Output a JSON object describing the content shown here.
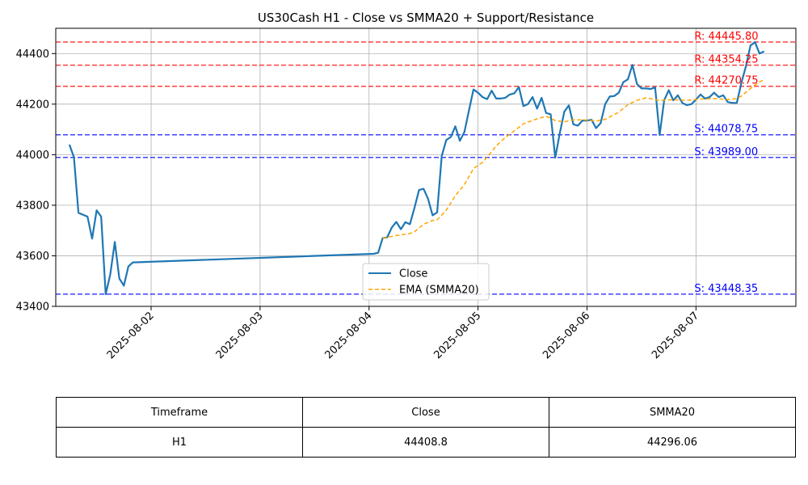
{
  "chart_data": {
    "type": "line",
    "title": "US30Cash H1 - Close vs SMMA20 + Support/Resistance",
    "xlabel": "",
    "ylabel": "",
    "x_ticks": [
      "2025-08-02",
      "2025-08-03",
      "2025-08-04",
      "2025-08-05",
      "2025-08-06",
      "2025-08-07"
    ],
    "y_ticks": [
      43400,
      43600,
      43800,
      44000,
      44200,
      44400
    ],
    "xlim": [
      "2025-08-01 03:00",
      "2025-08-07 22:00"
    ],
    "ylim": [
      43400,
      44500
    ],
    "grid": true,
    "legend_position": "lower-center",
    "series": [
      {
        "name": "Close",
        "color": "#1f77b4",
        "style": "solid",
        "points": [
          [
            "2025-08-01 06:00",
            44040
          ],
          [
            "2025-08-01 07:00",
            43990
          ],
          [
            "2025-08-01 08:00",
            43770
          ],
          [
            "2025-08-01 10:00",
            43755
          ],
          [
            "2025-08-01 11:00",
            43668
          ],
          [
            "2025-08-01 12:00",
            43780
          ],
          [
            "2025-08-01 13:00",
            43755
          ],
          [
            "2025-08-01 14:00",
            43448
          ],
          [
            "2025-08-01 15:00",
            43525
          ],
          [
            "2025-08-01 16:00",
            43655
          ],
          [
            "2025-08-01 17:00",
            43510
          ],
          [
            "2025-08-01 18:00",
            43482
          ],
          [
            "2025-08-01 19:00",
            43558
          ],
          [
            "2025-08-01 20:00",
            43574
          ],
          [
            "2025-08-04 01:00",
            43608
          ],
          [
            "2025-08-04 02:00",
            43612
          ],
          [
            "2025-08-04 03:00",
            43670
          ],
          [
            "2025-08-04 04:00",
            43673
          ],
          [
            "2025-08-04 05:00",
            43712
          ],
          [
            "2025-08-04 06:00",
            43734
          ],
          [
            "2025-08-04 07:00",
            43705
          ],
          [
            "2025-08-04 08:00",
            43733
          ],
          [
            "2025-08-04 09:00",
            43725
          ],
          [
            "2025-08-04 10:00",
            43790
          ],
          [
            "2025-08-04 11:00",
            43860
          ],
          [
            "2025-08-04 12:00",
            43865
          ],
          [
            "2025-08-04 13:00",
            43825
          ],
          [
            "2025-08-04 14:00",
            43760
          ],
          [
            "2025-08-04 15:00",
            43772
          ],
          [
            "2025-08-04 16:00",
            43995
          ],
          [
            "2025-08-04 17:00",
            44058
          ],
          [
            "2025-08-04 18:00",
            44070
          ],
          [
            "2025-08-04 19:00",
            44112
          ],
          [
            "2025-08-04 20:00",
            44055
          ],
          [
            "2025-08-04 21:00",
            44090
          ],
          [
            "2025-08-04 22:00",
            44175
          ],
          [
            "2025-08-04 23:00",
            44258
          ],
          [
            "2025-08-05 00:00",
            44245
          ],
          [
            "2025-08-05 01:00",
            44228
          ],
          [
            "2025-08-05 02:00",
            44220
          ],
          [
            "2025-08-05 03:00",
            44253
          ],
          [
            "2025-08-05 04:00",
            44222
          ],
          [
            "2025-08-05 05:00",
            44222
          ],
          [
            "2025-08-05 06:00",
            44225
          ],
          [
            "2025-08-05 07:00",
            44238
          ],
          [
            "2025-08-05 08:00",
            44243
          ],
          [
            "2025-08-05 09:00",
            44268
          ],
          [
            "2025-08-05 10:00",
            44192
          ],
          [
            "2025-08-05 11:00",
            44200
          ],
          [
            "2025-08-05 12:00",
            44228
          ],
          [
            "2025-08-05 13:00",
            44182
          ],
          [
            "2025-08-05 14:00",
            44225
          ],
          [
            "2025-08-05 15:00",
            44165
          ],
          [
            "2025-08-05 16:00",
            44160
          ],
          [
            "2025-08-05 17:00",
            43988
          ],
          [
            "2025-08-05 18:00",
            44085
          ],
          [
            "2025-08-05 19:00",
            44170
          ],
          [
            "2025-08-05 20:00",
            44195
          ],
          [
            "2025-08-05 21:00",
            44120
          ],
          [
            "2025-08-05 22:00",
            44115
          ],
          [
            "2025-08-05 23:00",
            44135
          ],
          [
            "2025-08-06 00:00",
            44135
          ],
          [
            "2025-08-06 01:00",
            44138
          ],
          [
            "2025-08-06 02:00",
            44105
          ],
          [
            "2025-08-06 03:00",
            44125
          ],
          [
            "2025-08-06 04:00",
            44200
          ],
          [
            "2025-08-06 05:00",
            44230
          ],
          [
            "2025-08-06 06:00",
            44232
          ],
          [
            "2025-08-06 07:00",
            44245
          ],
          [
            "2025-08-06 08:00",
            44287
          ],
          [
            "2025-08-06 09:00",
            44298
          ],
          [
            "2025-08-06 10:00",
            44355
          ],
          [
            "2025-08-06 11:00",
            44280
          ],
          [
            "2025-08-06 12:00",
            44262
          ],
          [
            "2025-08-06 13:00",
            44262
          ],
          [
            "2025-08-06 14:00",
            44260
          ],
          [
            "2025-08-06 15:00",
            44266
          ],
          [
            "2025-08-06 16:00",
            44078
          ],
          [
            "2025-08-06 17:00",
            44215
          ],
          [
            "2025-08-06 18:00",
            44255
          ],
          [
            "2025-08-06 19:00",
            44215
          ],
          [
            "2025-08-06 20:00",
            44235
          ],
          [
            "2025-08-06 21:00",
            44205
          ],
          [
            "2025-08-06 22:00",
            44196
          ],
          [
            "2025-08-06 23:00",
            44200
          ],
          [
            "2025-08-07 00:00",
            44218
          ],
          [
            "2025-08-07 01:00",
            44238
          ],
          [
            "2025-08-07 02:00",
            44222
          ],
          [
            "2025-08-07 03:00",
            44228
          ],
          [
            "2025-08-07 04:00",
            44245
          ],
          [
            "2025-08-07 05:00",
            44228
          ],
          [
            "2025-08-07 06:00",
            44235
          ],
          [
            "2025-08-07 07:00",
            44208
          ],
          [
            "2025-08-07 08:00",
            44205
          ],
          [
            "2025-08-07 09:00",
            44205
          ],
          [
            "2025-08-07 10:00",
            44285
          ],
          [
            "2025-08-07 11:00",
            44350
          ],
          [
            "2025-08-07 12:00",
            44432
          ],
          [
            "2025-08-07 13:00",
            44445
          ],
          [
            "2025-08-07 14:00",
            44400
          ],
          [
            "2025-08-07 15:00",
            44408.8
          ]
        ]
      },
      {
        "name": "EMA (SMMA20)",
        "color": "#ffa500",
        "style": "dashed",
        "points": [
          [
            "2025-08-04 03:00",
            43670
          ],
          [
            "2025-08-04 06:00",
            43680
          ],
          [
            "2025-08-04 09:00",
            43688
          ],
          [
            "2025-08-04 10:00",
            43695
          ],
          [
            "2025-08-04 12:00",
            43725
          ],
          [
            "2025-08-04 14:00",
            43740
          ],
          [
            "2025-08-04 15:00",
            43742
          ],
          [
            "2025-08-04 17:00",
            43780
          ],
          [
            "2025-08-04 19:00",
            43838
          ],
          [
            "2025-08-04 21:00",
            43882
          ],
          [
            "2025-08-04 23:00",
            43945
          ],
          [
            "2025-08-05 01:00",
            43970
          ],
          [
            "2025-08-05 02:00",
            43990
          ],
          [
            "2025-08-05 04:00",
            44035
          ],
          [
            "2025-08-05 06:00",
            44068
          ],
          [
            "2025-08-05 08:00",
            44095
          ],
          [
            "2025-08-05 10:00",
            44122
          ],
          [
            "2025-08-05 13:00",
            44142
          ],
          [
            "2025-08-05 15:00",
            44152
          ],
          [
            "2025-08-05 17:00",
            44135
          ],
          [
            "2025-08-05 19:00",
            44130
          ],
          [
            "2025-08-05 21:00",
            44138
          ],
          [
            "2025-08-06 00:00",
            44137
          ],
          [
            "2025-08-06 02:00",
            44133
          ],
          [
            "2025-08-06 04:00",
            44140
          ],
          [
            "2025-08-06 07:00",
            44168
          ],
          [
            "2025-08-06 09:00",
            44198
          ],
          [
            "2025-08-06 11:00",
            44215
          ],
          [
            "2025-08-06 13:00",
            44225
          ],
          [
            "2025-08-06 16:00",
            44214
          ],
          [
            "2025-08-06 19:00",
            44218
          ],
          [
            "2025-08-06 22:00",
            44215
          ],
          [
            "2025-08-07 01:00",
            44220
          ],
          [
            "2025-08-07 04:00",
            44222
          ],
          [
            "2025-08-07 07:00",
            44218
          ],
          [
            "2025-08-07 09:00",
            44222
          ],
          [
            "2025-08-07 10:00",
            44232
          ],
          [
            "2025-08-07 12:00",
            44262
          ],
          [
            "2025-08-07 14:00",
            44288
          ],
          [
            "2025-08-07 15:00",
            44296.06
          ]
        ]
      }
    ],
    "levels": [
      {
        "kind": "resistance",
        "value": 44445.8,
        "label": "R: 44445.80",
        "color": "#ff0000"
      },
      {
        "kind": "resistance",
        "value": 44354.25,
        "label": "R: 44354.25",
        "color": "#ff0000"
      },
      {
        "kind": "resistance",
        "value": 44270.75,
        "label": "R: 44270.75",
        "color": "#ff0000"
      },
      {
        "kind": "support",
        "value": 44078.75,
        "label": "S: 44078.75",
        "color": "#0000ff"
      },
      {
        "kind": "support",
        "value": 43989.0,
        "label": "S: 43989.00",
        "color": "#0000ff"
      },
      {
        "kind": "support",
        "value": 43448.35,
        "label": "S: 43448.35",
        "color": "#0000ff"
      }
    ]
  },
  "table": {
    "headers": [
      "Timeframe",
      "Close",
      "SMMA20"
    ],
    "rows": [
      [
        "H1",
        "44408.8",
        "44296.06"
      ]
    ]
  }
}
